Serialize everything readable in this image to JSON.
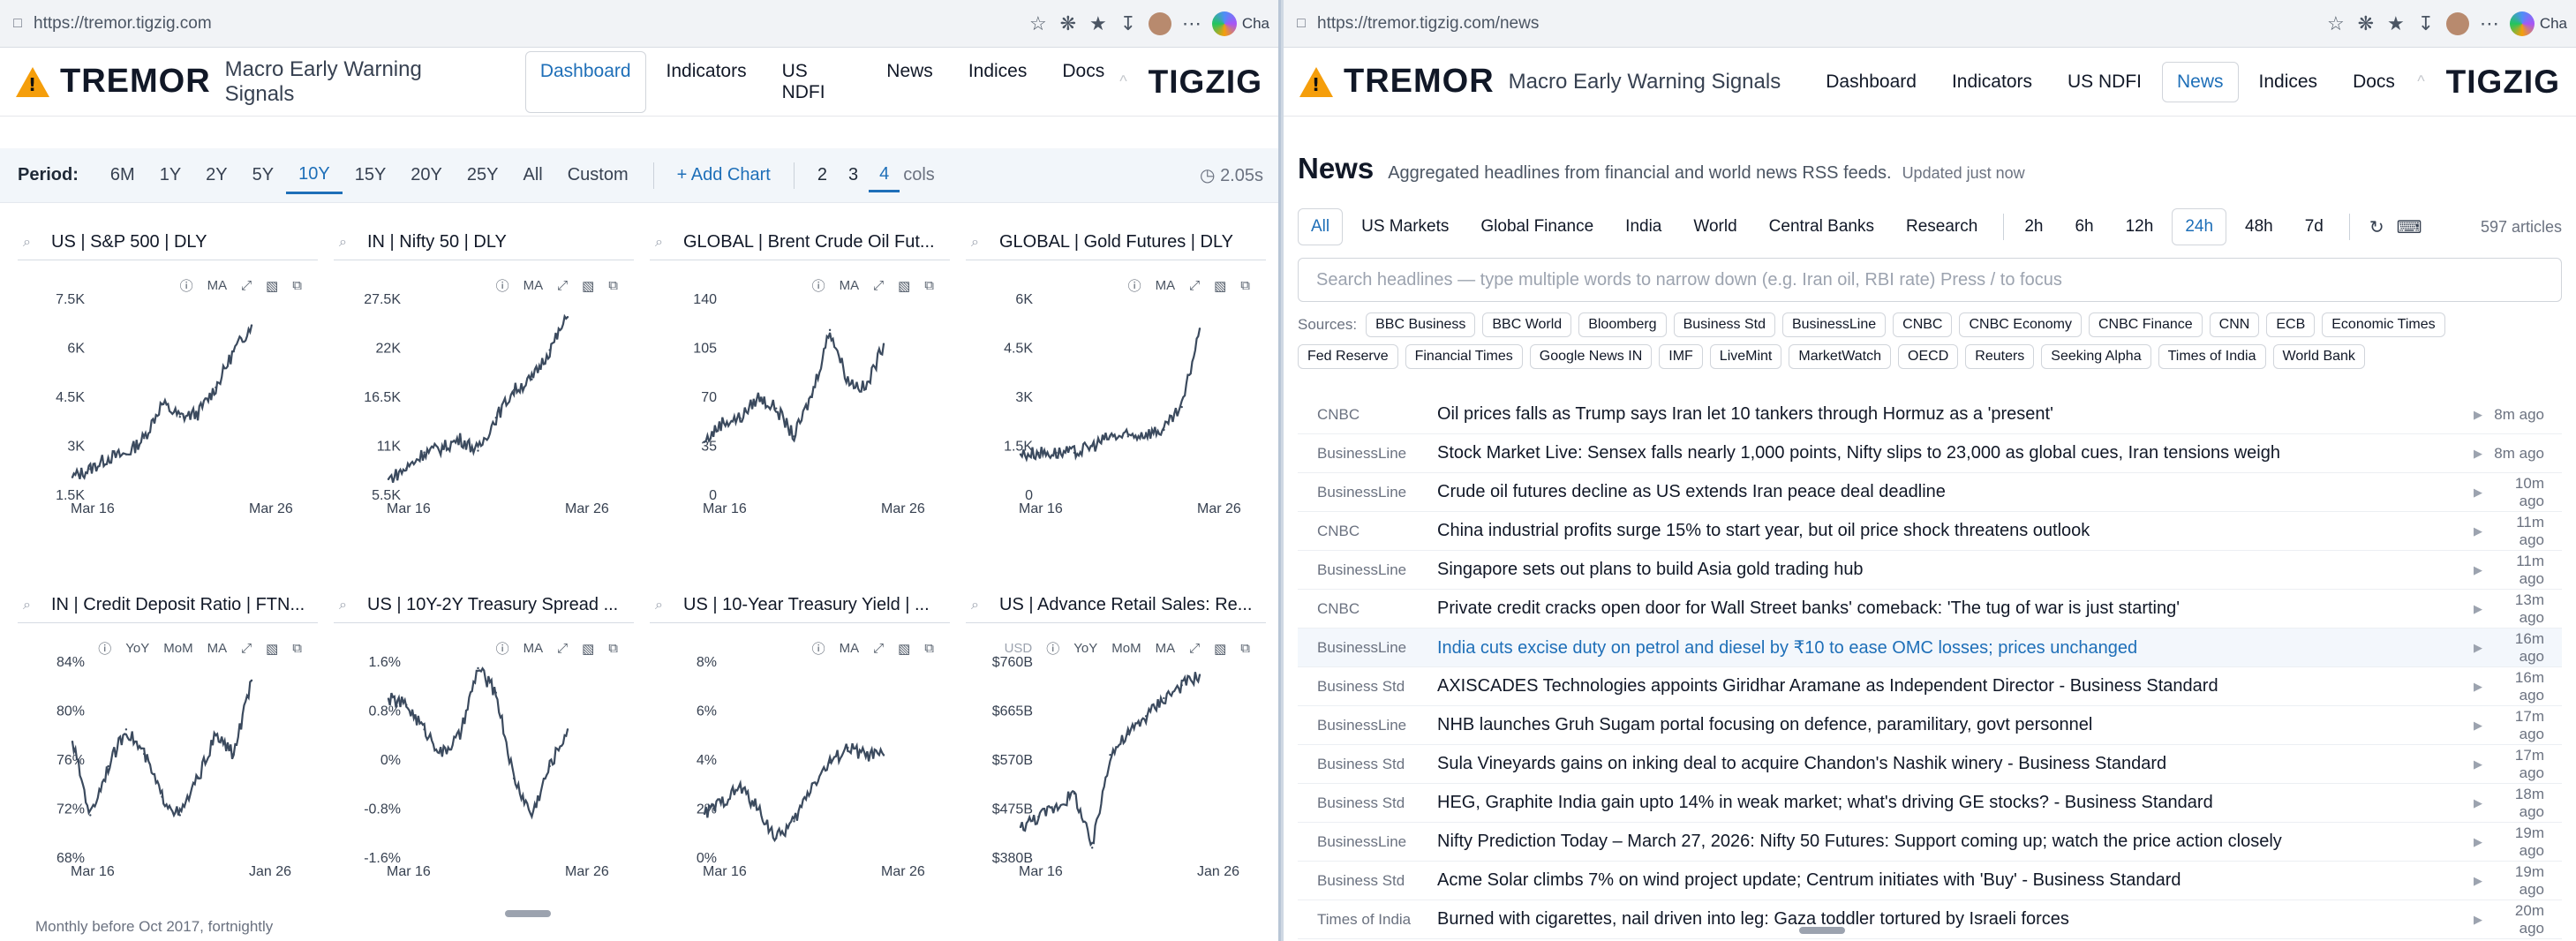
{
  "left_window": {
    "url": "https://tremor.tigzig.com",
    "browser_chat": "Cha",
    "app": {
      "brand": "TREMOR",
      "subtitle": "Macro Early Warning Signals",
      "nav": [
        "Dashboard",
        "Indicators",
        "US NDFI",
        "News",
        "Indices",
        "Docs"
      ],
      "active_nav": "Dashboard",
      "nav_sep": "^",
      "logo": "TIGZIG"
    },
    "period": {
      "label": "Period:",
      "options": [
        "6M",
        "1Y",
        "2Y",
        "5Y",
        "10Y",
        "15Y",
        "20Y",
        "25Y",
        "All",
        "Custom"
      ],
      "active": "10Y",
      "add_chart": "Add Chart",
      "col_options": [
        "2",
        "3",
        "4"
      ],
      "active_cols": "4",
      "cols_label": "cols",
      "timer": "2.05s"
    },
    "footnote": "Monthly before Oct 2017, fortnightly"
  },
  "right_window": {
    "url": "https://tremor.tigzig.com/news",
    "browser_chat": "Cha",
    "app": {
      "brand": "TREMOR",
      "subtitle": "Macro Early Warning Signals",
      "nav": [
        "Dashboard",
        "Indicators",
        "US NDFI",
        "News",
        "Indices",
        "Docs"
      ],
      "active_nav": "News",
      "nav_sep": "^",
      "logo": "TIGZIG"
    },
    "news": {
      "title": "News",
      "description": "Aggregated headlines from financial and world news RSS feeds.",
      "updated": "Updated just now",
      "categories": [
        "All",
        "US Markets",
        "Global Finance",
        "India",
        "World",
        "Central Banks",
        "Research"
      ],
      "active_category": "All",
      "ranges": [
        "2h",
        "6h",
        "12h",
        "24h",
        "48h",
        "7d"
      ],
      "active_range": "24h",
      "article_count": "597 articles",
      "search_placeholder": "Search headlines — type multiple words to narrow down (e.g. Iran oil, RBI rate)  Press / to focus",
      "sources_label": "Sources:",
      "sources": [
        "BBC Business",
        "BBC World",
        "Bloomberg",
        "Business Std",
        "BusinessLine",
        "CNBC",
        "CNBC Economy",
        "CNBC Finance",
        "CNN",
        "ECB",
        "Economic Times",
        "Fed Reserve",
        "Financial Times",
        "Google News IN",
        "IMF",
        "LiveMint",
        "MarketWatch",
        "OECD",
        "Reuters",
        "Seeking Alpha",
        "Times of India",
        "World Bank"
      ],
      "items": [
        {
          "source": "CNBC",
          "headline": "Oil prices falls as Trump says Iran let 10 tankers through Hormuz as a 'present'",
          "ago": "8m ago"
        },
        {
          "source": "BusinessLine",
          "headline": "Stock Market Live: Sensex falls nearly 1,000 points, Nifty slips to 23,000 as global cues, Iran tensions weigh",
          "ago": "8m ago"
        },
        {
          "source": "BusinessLine",
          "headline": "Crude oil futures decline as US extends Iran peace deal deadline",
          "ago": "10m ago"
        },
        {
          "source": "CNBC",
          "headline": "China industrial profits surge 15% to start year, but oil price shock threatens outlook",
          "ago": "11m ago"
        },
        {
          "source": "BusinessLine",
          "headline": "Singapore sets out plans to build Asia gold trading hub",
          "ago": "11m ago"
        },
        {
          "source": "CNBC",
          "headline": "Private credit cracks open door for Wall Street banks' comeback: 'The tug of war is just starting'",
          "ago": "13m ago"
        },
        {
          "source": "BusinessLine",
          "headline": "India cuts excise duty on petrol and diesel by ₹10 to ease OMC losses; prices unchanged",
          "ago": "16m ago"
        },
        {
          "source": "Business Std",
          "headline": "AXISCADES Technologies appoints Giridhar Aramane as Independent Director - Business Standard",
          "ago": "16m ago"
        },
        {
          "source": "BusinessLine",
          "headline": "NHB launches Gruh Sugam portal focusing on defence, paramilitary, govt personnel",
          "ago": "17m ago"
        },
        {
          "source": "Business Std",
          "headline": "Sula Vineyards gains on inking deal to acquire Chandon's Nashik winery - Business Standard",
          "ago": "17m ago"
        },
        {
          "source": "Business Std",
          "headline": "HEG, Graphite India gain upto 14% in weak market; what's driving GE stocks? - Business Standard",
          "ago": "18m ago"
        },
        {
          "source": "BusinessLine",
          "headline": "Nifty Prediction Today – March 27, 2026: Nifty 50 Futures: Support coming up; watch the price action closely",
          "ago": "19m ago"
        },
        {
          "source": "Business Std",
          "headline": "Acme Solar climbs 7% on wind project update; Centrum initiates with 'Buy' - Business Standard",
          "ago": "19m ago"
        },
        {
          "source": "Times of India",
          "headline": "Burned with cigarettes, nail driven into leg: Gaza toddler tortured by Israeli forces",
          "ago": "20m ago"
        }
      ],
      "highlighted_index": 6
    }
  },
  "chart_data": [
    {
      "type": "line",
      "title": "US | S&P 500 | DLY",
      "tools": [
        "info",
        "MA",
        "expand",
        "image",
        "copy"
      ],
      "yticks": [
        "7.5K",
        "6K",
        "4.5K",
        "3K",
        "1.5K"
      ],
      "ylim": [
        1500,
        7500
      ],
      "xticks": [
        "Mar 16",
        "Mar 26"
      ],
      "x": [
        "Mar 16",
        "Mar 17",
        "Mar 18",
        "Mar 19",
        "Mar 20",
        "Mar 21",
        "Mar 22",
        "Mar 23",
        "Mar 24",
        "Mar 25",
        "Mar 26"
      ],
      "values": [
        2050,
        2300,
        2650,
        2750,
        3250,
        4300,
        3900,
        4000,
        4800,
        5900,
        6700
      ],
      "color": "#3b4a5e"
    },
    {
      "type": "line",
      "title": "IN | Nifty 50 | DLY",
      "tools": [
        "info",
        "MA",
        "expand",
        "image",
        "copy"
      ],
      "yticks": [
        "27.5K",
        "22K",
        "16.5K",
        "11K",
        "5.5K"
      ],
      "ylim": [
        5500,
        27500
      ],
      "xticks": [
        "Mar 16",
        "Mar 26"
      ],
      "x": [
        "Mar 16",
        "Mar 17",
        "Mar 18",
        "Mar 19",
        "Mar 20",
        "Mar 21",
        "Mar 22",
        "Mar 23",
        "Mar 24",
        "Mar 25",
        "Mar 26"
      ],
      "values": [
        7300,
        8500,
        10300,
        10800,
        11800,
        10500,
        14200,
        17300,
        18500,
        21800,
        25500
      ],
      "color": "#3b4a5e"
    },
    {
      "type": "line",
      "title": "GLOBAL | Brent Crude Oil Fut...",
      "tools": [
        "info",
        "MA",
        "expand",
        "image",
        "copy"
      ],
      "yticks": [
        "140",
        "105",
        "70",
        "35",
        "0"
      ],
      "ylim": [
        0,
        140
      ],
      "xticks": [
        "Mar 16",
        "Mar 26"
      ],
      "x": [
        "Mar 16",
        "Mar 17",
        "Mar 18",
        "Mar 19",
        "Mar 20",
        "Mar 21",
        "Mar 22",
        "Mar 23",
        "Mar 24",
        "Mar 25",
        "Mar 26"
      ],
      "values": [
        38,
        52,
        55,
        70,
        62,
        42,
        72,
        118,
        82,
        76,
        108
      ],
      "color": "#3b4a5e"
    },
    {
      "type": "line",
      "title": "GLOBAL | Gold Futures | DLY",
      "tools": [
        "info",
        "MA",
        "expand",
        "image",
        "copy"
      ],
      "yticks": [
        "6K",
        "4.5K",
        "3K",
        "1.5K",
        "0"
      ],
      "ylim": [
        0,
        6000
      ],
      "xticks": [
        "Mar 16",
        "Mar 26"
      ],
      "x": [
        "Mar 16",
        "Mar 17",
        "Mar 18",
        "Mar 19",
        "Mar 20",
        "Mar 21",
        "Mar 22",
        "Mar 23",
        "Mar 24",
        "Mar 25",
        "Mar 26"
      ],
      "values": [
        1250,
        1300,
        1300,
        1300,
        1500,
        1800,
        1800,
        1900,
        2000,
        2700,
        5100
      ],
      "color": "#3b4a5e"
    },
    {
      "type": "line",
      "title": "IN | Credit Deposit Ratio | FTN...",
      "tools": [
        "info",
        "YoY",
        "MoM",
        "MA",
        "expand",
        "image",
        "copy"
      ],
      "yticks": [
        "84%",
        "80%",
        "76%",
        "72%",
        "68%"
      ],
      "ylim": [
        68,
        84
      ],
      "xticks": [
        "Mar 16",
        "Jan 26"
      ],
      "x": [
        "Mar 16",
        "Mar 17",
        "Mar 18",
        "Mar 19",
        "Mar 20",
        "Mar 21",
        "Mar 22",
        "Mar 23",
        "Mar 24",
        "Mar 25",
        "Jan 26"
      ],
      "values": [
        77.5,
        71.5,
        75.5,
        78.5,
        76.5,
        73,
        71.5,
        74.5,
        78,
        76.5,
        82.5
      ],
      "color": "#3b4a5e"
    },
    {
      "type": "line",
      "title": "US | 10Y-2Y Treasury Spread ...",
      "tools": [
        "info",
        "MA",
        "expand",
        "image",
        "copy"
      ],
      "yticks": [
        "1.6%",
        "0.8%",
        "0%",
        "-0.8%",
        "-1.6%"
      ],
      "ylim": [
        -1.6,
        1.6
      ],
      "xticks": [
        "Mar 16",
        "Mar 26"
      ],
      "x": [
        "Mar 16",
        "Mar 17",
        "Mar 18",
        "Mar 19",
        "Mar 20",
        "Mar 21",
        "Mar 22",
        "Mar 23",
        "Mar 24",
        "Mar 25",
        "Mar 26"
      ],
      "values": [
        1.0,
        0.9,
        0.5,
        0.1,
        0.4,
        1.5,
        1.1,
        -0.3,
        -0.9,
        -0.1,
        0.5
      ],
      "color": "#3b4a5e"
    },
    {
      "type": "line",
      "title": "US | 10-Year Treasury Yield | ...",
      "tools": [
        "info",
        "MA",
        "expand",
        "image",
        "copy"
      ],
      "yticks": [
        "8%",
        "6%",
        "4%",
        "2%",
        "0%"
      ],
      "ylim": [
        0,
        8
      ],
      "xticks": [
        "Mar 16",
        "Mar 26"
      ],
      "x": [
        "Mar 16",
        "Mar 17",
        "Mar 18",
        "Mar 19",
        "Mar 20",
        "Mar 21",
        "Mar 22",
        "Mar 23",
        "Mar 24",
        "Mar 25",
        "Mar 26"
      ],
      "values": [
        1.8,
        2.3,
        2.9,
        2.0,
        0.8,
        1.5,
        3.0,
        3.9,
        4.5,
        4.2,
        4.2
      ],
      "color": "#3b4a5e"
    },
    {
      "type": "line",
      "title": "US | Advance Retail Sales: Re...",
      "unit": "USD",
      "tools": [
        "info",
        "YoY",
        "MoM",
        "MA",
        "expand",
        "image",
        "copy"
      ],
      "yticks": [
        "$760B",
        "$665B",
        "$570B",
        "$475B",
        "$380B"
      ],
      "ylim": [
        380,
        760
      ],
      "xticks": [
        "Mar 16",
        "Jan 26"
      ],
      "x": [
        "Mar 16",
        "Mar 17",
        "Mar 18",
        "Mar 19",
        "Mar 20",
        "Mar 21",
        "Mar 22",
        "Mar 23",
        "Mar 24",
        "Mar 25",
        "Jan 26"
      ],
      "values": [
        440,
        460,
        480,
        505,
        400,
        580,
        620,
        655,
        690,
        715,
        735
      ],
      "color": "#3b4a5e"
    }
  ]
}
